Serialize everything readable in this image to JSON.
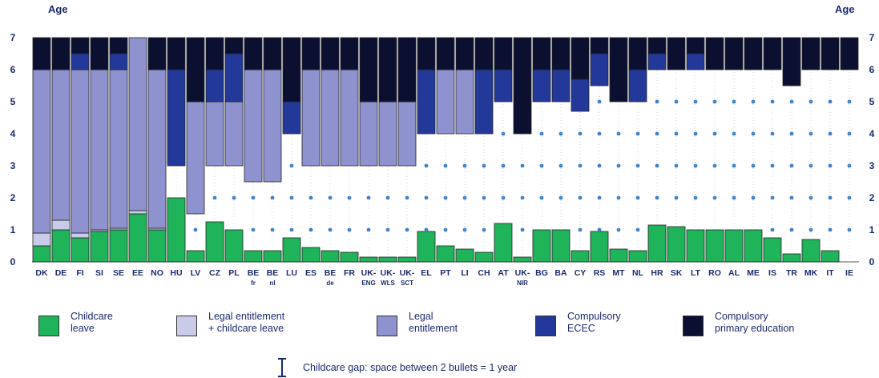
{
  "chart_data": {
    "type": "bar",
    "stacked": true,
    "ylabel_left": "Age",
    "ylabel_right": "Age",
    "ylim": [
      0,
      7
    ],
    "yticks": [
      0,
      1,
      2,
      3,
      4,
      5,
      6,
      7
    ],
    "categories": [
      {
        "label": "DK",
        "sub": ""
      },
      {
        "label": "DE",
        "sub": ""
      },
      {
        "label": "FI",
        "sub": ""
      },
      {
        "label": "SI",
        "sub": ""
      },
      {
        "label": "SE",
        "sub": ""
      },
      {
        "label": "EE",
        "sub": ""
      },
      {
        "label": "NO",
        "sub": ""
      },
      {
        "label": "HU",
        "sub": ""
      },
      {
        "label": "LV",
        "sub": ""
      },
      {
        "label": "CZ",
        "sub": ""
      },
      {
        "label": "PL",
        "sub": ""
      },
      {
        "label": "BE",
        "sub": "fr"
      },
      {
        "label": "BE",
        "sub": "nl"
      },
      {
        "label": "LU",
        "sub": ""
      },
      {
        "label": "ES",
        "sub": ""
      },
      {
        "label": "BE",
        "sub": "de"
      },
      {
        "label": "FR",
        "sub": ""
      },
      {
        "label": "UK-",
        "sub": "ENG"
      },
      {
        "label": "UK-",
        "sub": "WLS"
      },
      {
        "label": "UK-",
        "sub": "SCT"
      },
      {
        "label": "EL",
        "sub": ""
      },
      {
        "label": "PT",
        "sub": ""
      },
      {
        "label": "LI",
        "sub": ""
      },
      {
        "label": "CH",
        "sub": ""
      },
      {
        "label": "AT",
        "sub": ""
      },
      {
        "label": "UK-",
        "sub": "NIR"
      },
      {
        "label": "BG",
        "sub": ""
      },
      {
        "label": "BA",
        "sub": ""
      },
      {
        "label": "CY",
        "sub": ""
      },
      {
        "label": "RS",
        "sub": ""
      },
      {
        "label": "MT",
        "sub": ""
      },
      {
        "label": "NL",
        "sub": ""
      },
      {
        "label": "HR",
        "sub": ""
      },
      {
        "label": "SK",
        "sub": ""
      },
      {
        "label": "LT",
        "sub": ""
      },
      {
        "label": "RO",
        "sub": ""
      },
      {
        "label": "AL",
        "sub": ""
      },
      {
        "label": "ME",
        "sub": ""
      },
      {
        "label": "IS",
        "sub": ""
      },
      {
        "label": "TR",
        "sub": ""
      },
      {
        "label": "MK",
        "sub": ""
      },
      {
        "label": "IT",
        "sub": ""
      },
      {
        "label": "IE",
        "sub": ""
      }
    ],
    "childcare_leave_end": [
      0.5,
      1.0,
      0.75,
      0.95,
      1.0,
      1.5,
      1.0,
      2.0,
      0.35,
      1.25,
      1.0,
      0.35,
      0.35,
      0.75,
      0.45,
      0.35,
      0.3,
      0.15,
      0.15,
      0.15,
      0.95,
      0.5,
      0.4,
      0.3,
      1.2,
      0.15,
      1.0,
      1.0,
      0.35,
      0.95,
      0.4,
      0.35,
      1.15,
      1.1,
      1.0,
      1.0,
      1.0,
      1.0,
      0.75,
      0.25,
      0.7,
      0.35,
      0.0
    ],
    "legal_plus_leave_end": [
      0.9,
      1.3,
      0.9,
      1.0,
      1.05,
      1.6,
      1.05,
      2.0,
      0.35,
      1.25,
      1.0,
      0.35,
      0.35,
      0.75,
      0.45,
      0.35,
      0.3,
      0.15,
      0.15,
      0.15,
      0.95,
      0.5,
      0.4,
      0.3,
      1.2,
      0.15,
      1.0,
      1.0,
      0.35,
      0.95,
      0.4,
      0.35,
      1.15,
      1.1,
      1.0,
      1.0,
      1.0,
      1.0,
      0.75,
      0.25,
      0.7,
      0.35,
      0.0
    ],
    "entitlement_start": [
      0.9,
      1.3,
      0.9,
      1.0,
      1.05,
      1.6,
      1.05,
      3.0,
      1.5,
      3.0,
      3.0,
      2.5,
      2.5,
      4.0,
      3.0,
      3.0,
      3.0,
      3.0,
      3.0,
      3.0,
      4.0,
      4.0,
      4.0,
      4.0,
      5.0,
      4.0,
      5.0,
      5.0,
      4.7,
      5.5,
      5.0,
      5.0,
      6.0,
      6.0,
      6.0,
      6.0,
      6.0,
      6.0,
      6.0,
      5.5,
      6.0,
      6.0,
      6.0
    ],
    "ecec_start": [
      6,
      6,
      6,
      6,
      6,
      7,
      6,
      3,
      5,
      5,
      5,
      6,
      6,
      4,
      6,
      6,
      6,
      5,
      5,
      5,
      4,
      6,
      6,
      4,
      5,
      4,
      5,
      5,
      4.7,
      5.5,
      5,
      5,
      6,
      6,
      6,
      6,
      6,
      6,
      6,
      5.5,
      6,
      6,
      6
    ],
    "primary_start": [
      6,
      6,
      6.5,
      6,
      6.5,
      7,
      6,
      6,
      5,
      6,
      6.5,
      6,
      6,
      5,
      6,
      6,
      6,
      5,
      5,
      5,
      6,
      6,
      6,
      6,
      6,
      4,
      6,
      6,
      5.7,
      6.5,
      5,
      6,
      6.5,
      6,
      6.5,
      6,
      6,
      6,
      6,
      5.5,
      6,
      6,
      6
    ],
    "legend": [
      {
        "name": "Childcare leave",
        "color": "#1fb35a"
      },
      {
        "name": "Legal entitlement + childcare leave",
        "color": "#c9cbe8"
      },
      {
        "name": "Legal entitlement",
        "color": "#8e92cf"
      },
      {
        "name": "Compulsory ECEC",
        "color": "#23399a"
      },
      {
        "name": "Compulsory primary education",
        "color": "#0b1030"
      }
    ],
    "gap_note": "Childcare gap: space between 2 bullets = 1 year"
  },
  "legend_labels": [
    {
      "line1": "Childcare",
      "line2": "leave"
    },
    {
      "line1": "Legal entitlement",
      "line2": "+ childcare leave"
    },
    {
      "line1": "Legal",
      "line2": "entitlement"
    },
    {
      "line1": "Compulsory",
      "line2": "ECEC"
    },
    {
      "line1": "Compulsory",
      "line2": "primary education"
    }
  ]
}
